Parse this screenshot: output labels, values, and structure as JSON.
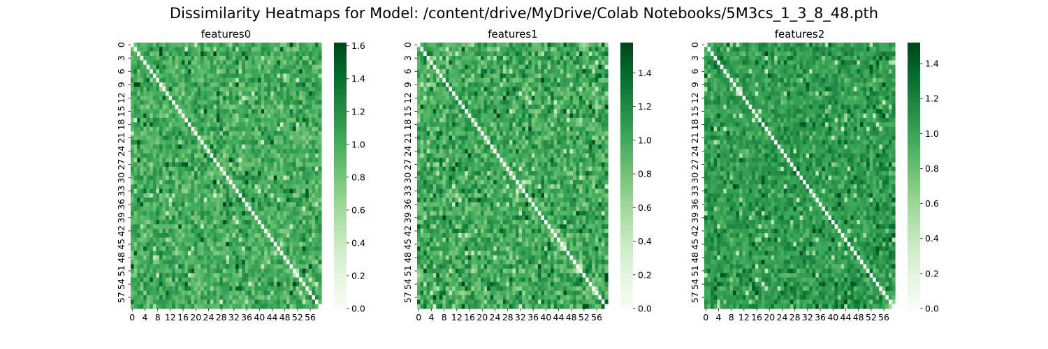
{
  "figure": {
    "title": "Dissimilarity Heatmaps for Model: /content/drive/MyDrive/Colab Notebooks/5M3cs_1_3_8_48.pth"
  },
  "colormap": {
    "name": "Greens",
    "stops": [
      "#f7fcf5",
      "#e5f5e0",
      "#c7e9c0",
      "#a1d99b",
      "#74c476",
      "#41ab5d",
      "#238b45",
      "#006d2c",
      "#00441b"
    ]
  },
  "chart_data": [
    {
      "type": "heatmap",
      "title": "features0",
      "size": 60,
      "x_tick_labels": [
        "0",
        "4",
        "8",
        "12",
        "16",
        "20",
        "24",
        "28",
        "32",
        "36",
        "40",
        "44",
        "48",
        "52",
        "56"
      ],
      "y_tick_labels": [
        "0",
        "3",
        "6",
        "9",
        "12",
        "15",
        "18",
        "21",
        "24",
        "27",
        "30",
        "33",
        "36",
        "39",
        "42",
        "45",
        "48",
        "51",
        "54",
        "57"
      ],
      "vmin": 0,
      "vmax": 1.62,
      "typical_value": 1.0,
      "spread": 0.17,
      "seed": 11,
      "colorbar_ticks": [
        "0.0",
        "0.2",
        "0.4",
        "0.6",
        "0.8",
        "1.0",
        "1.2",
        "1.4",
        "1.6"
      ],
      "colorbar_tick_values": [
        0,
        0.2,
        0.4,
        0.6,
        0.8,
        1.0,
        1.2,
        1.4,
        1.6
      ]
    },
    {
      "type": "heatmap",
      "title": "features1",
      "size": 60,
      "x_tick_labels": [
        "0",
        "4",
        "8",
        "12",
        "16",
        "20",
        "24",
        "28",
        "32",
        "36",
        "40",
        "44",
        "48",
        "52",
        "56"
      ],
      "y_tick_labels": [
        "0",
        "3",
        "6",
        "9",
        "12",
        "15",
        "18",
        "21",
        "24",
        "27",
        "30",
        "33",
        "36",
        "39",
        "42",
        "45",
        "48",
        "51",
        "54",
        "57"
      ],
      "vmin": 0,
      "vmax": 1.58,
      "typical_value": 1.0,
      "spread": 0.2,
      "seed": 23,
      "colorbar_ticks": [
        "0.0",
        "0.2",
        "0.4",
        "0.6",
        "0.8",
        "1.0",
        "1.2",
        "1.4"
      ],
      "colorbar_tick_values": [
        0,
        0.2,
        0.4,
        0.6,
        0.8,
        1.0,
        1.2,
        1.4
      ]
    },
    {
      "type": "heatmap",
      "title": "features2",
      "size": 60,
      "x_tick_labels": [
        "0",
        "4",
        "8",
        "12",
        "16",
        "20",
        "24",
        "28",
        "32",
        "36",
        "40",
        "44",
        "48",
        "52",
        "56"
      ],
      "y_tick_labels": [
        "0",
        "3",
        "6",
        "9",
        "12",
        "15",
        "18",
        "21",
        "24",
        "27",
        "30",
        "33",
        "36",
        "39",
        "42",
        "45",
        "48",
        "51",
        "54",
        "57"
      ],
      "vmin": 0,
      "vmax": 1.52,
      "typical_value": 1.05,
      "spread": 0.14,
      "seed": 37,
      "colorbar_ticks": [
        "0.0",
        "0.2",
        "0.4",
        "0.6",
        "0.8",
        "1.0",
        "1.2",
        "1.4"
      ],
      "colorbar_tick_values": [
        0,
        0.2,
        0.4,
        0.6,
        0.8,
        1.0,
        1.2,
        1.4
      ]
    }
  ]
}
